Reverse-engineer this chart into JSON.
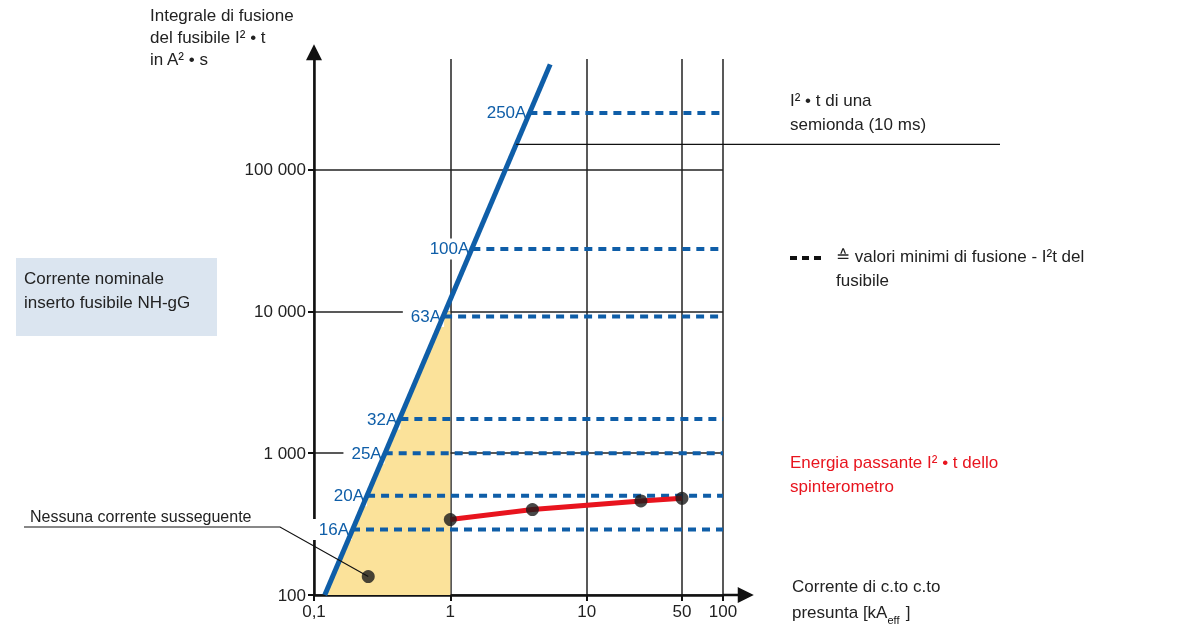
{
  "chart_data": {
    "type": "line",
    "ylabel": "Integrale di fusione del fusibile I² • t in A² • s",
    "xlabel": "Corrente di c.to c.to presunta [kA$_{eff}$]",
    "log": "xy",
    "grid": true,
    "xlim": [
      0.1,
      100
    ],
    "ylim": [
      100,
      600000
    ],
    "xticks": [
      {
        "value": 0.1,
        "label": "0,1"
      },
      1,
      10,
      50,
      100
    ],
    "yticks": [
      100,
      {
        "value": 1000,
        "label": "1 000"
      },
      {
        "value": 10000,
        "label": "10 000"
      },
      {
        "value": 100000,
        "label": "100 000"
      }
    ],
    "series": [
      {
        "type": "area",
        "color": "#fbe29a",
        "x": [
          0.12,
          0.93,
          1
        ],
        "values": [
          100,
          10000,
          10000
        ],
        "marker": "none"
      },
      {
        "name": "250A",
        "color": "#0f5ea8",
        "x": [
          3.8,
          100
        ],
        "values": [
          250000,
          250000
        ],
        "line_style": "dashed",
        "marker": "none"
      },
      {
        "name": "100A",
        "color": "#0f5ea8",
        "x": [
          1.45,
          100
        ],
        "values": [
          27500,
          27500
        ],
        "line_style": "dashed",
        "marker": "none"
      },
      {
        "name": "63A",
        "color": "#0f5ea8",
        "x": [
          0.9,
          100
        ],
        "values": [
          9200,
          9200
        ],
        "line_style": "dashed",
        "marker": "none"
      },
      {
        "name": "32A",
        "color": "#0f5ea8",
        "x": [
          0.43,
          100
        ],
        "values": [
          1740,
          1740
        ],
        "line_style": "dashed",
        "marker": "none"
      },
      {
        "name": "25A",
        "color": "#0f5ea8",
        "x": [
          0.33,
          100
        ],
        "values": [
          1000,
          1000
        ],
        "line_style": "dashed",
        "marker": "none"
      },
      {
        "name": "20A",
        "color": "#0f5ea8",
        "x": [
          0.245,
          100
        ],
        "values": [
          500,
          500
        ],
        "line_style": "dashed",
        "marker": "none"
      },
      {
        "name": "16A",
        "color": "#0f5ea8",
        "x": [
          0.19,
          100
        ],
        "values": [
          290,
          290
        ],
        "line_style": "dashed",
        "marker": "none"
      },
      {
        "color": "#0f5ea8",
        "x": [
          0.12,
          5.4
        ],
        "values": [
          100,
          550000
        ],
        "line_style": "solid",
        "marker": "none"
      },
      {
        "color": "#e8141e",
        "x": [
          1,
          4,
          25,
          50
        ],
        "values": [
          340,
          400,
          460,
          480
        ],
        "line_style": "solid",
        "marker": "none"
      },
      {
        "type": "scatter",
        "color": "#1a1a1a",
        "x": [
          1,
          4,
          25,
          50
        ],
        "values": [
          340,
          400,
          460,
          480
        ],
        "marker": "circle"
      },
      {
        "type": "scatter",
        "color": "#1a1a1a",
        "x": [
          0.25
        ],
        "values": [
          135
        ],
        "marker": "circle"
      }
    ],
    "ref_lines": [
      {
        "axis": "y",
        "value": 150000,
        "label": "I² • t di una semionda (10 ms)",
        "color": "#111111",
        "line_style": "solid"
      }
    ],
    "annotations": [
      {
        "text": "Nessuna corrente susseguente",
        "x": 0.25,
        "y": 135
      },
      "Corrente nominale inserto fusibile NH-gG",
      "≙ valori minimi di fusione - I²t del fusibile",
      "Energia passante I² • t dello spinterometro"
    ]
  }
}
